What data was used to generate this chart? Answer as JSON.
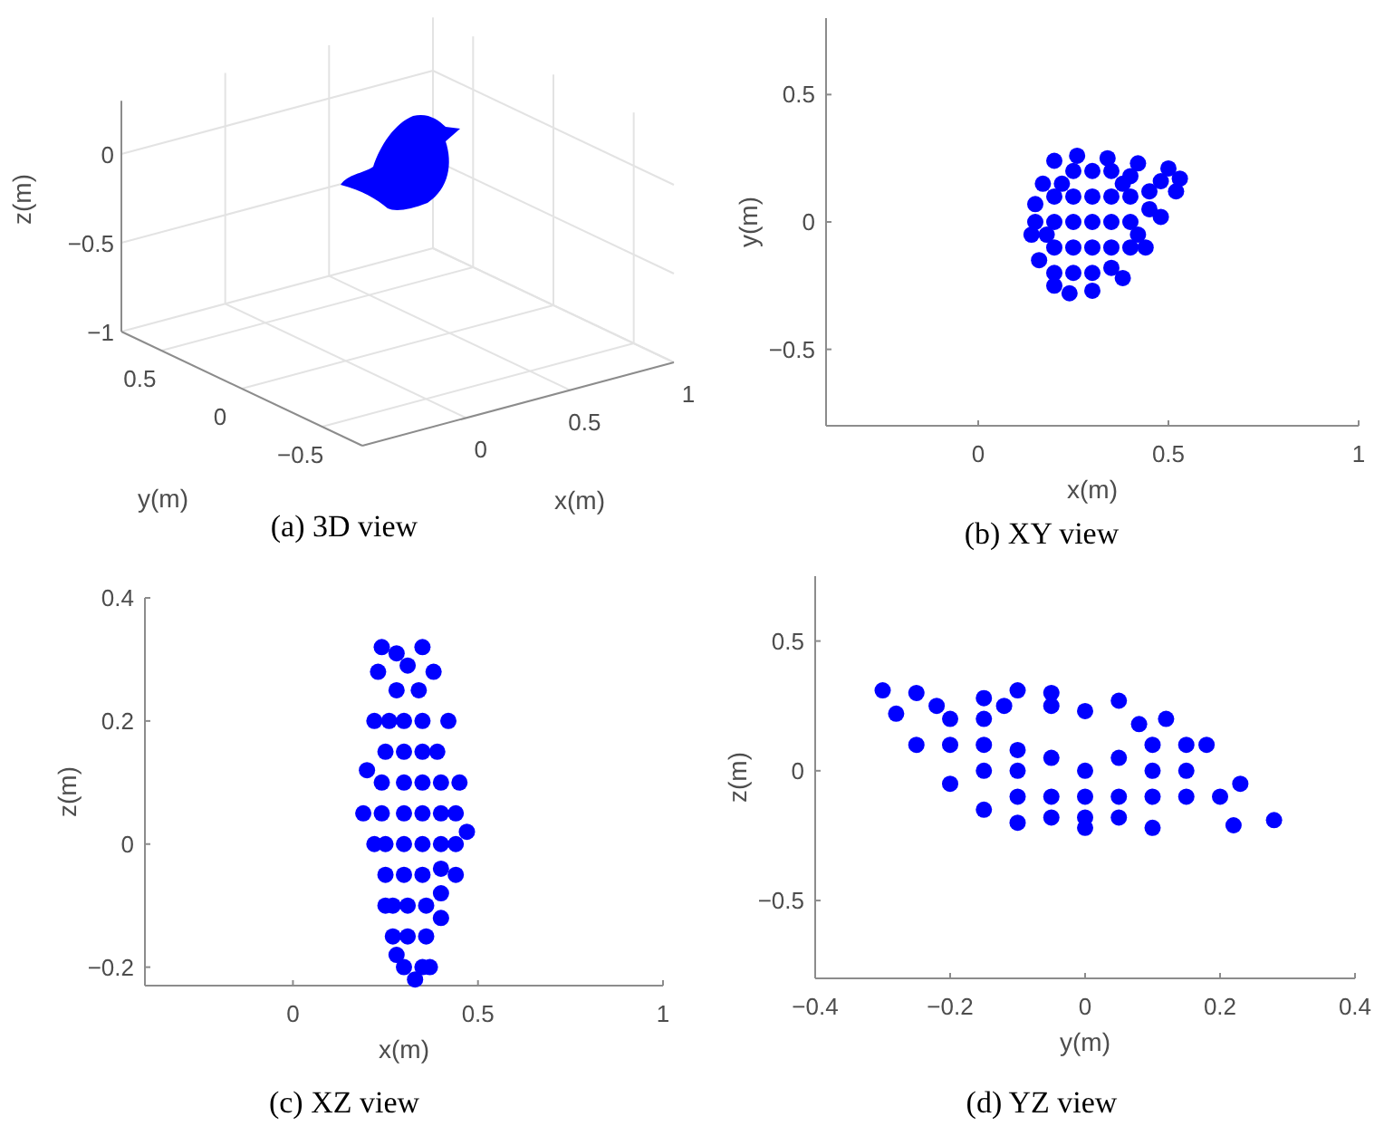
{
  "chart_data": [
    {
      "type": "other",
      "title": "(a) 3D view",
      "xlabel": "x(m)",
      "ylabel": "y(m)",
      "y2label": "z(m)",
      "annotations": [
        "0",
        "0.5",
        "1",
        "−0.5",
        "0",
        "0.5",
        "−1",
        "−0.5",
        "0"
      ]
    },
    {
      "type": "scatter",
      "title": "(b) XY view",
      "xlabel": "x(m)",
      "ylabel": "y(m)",
      "xlim": [
        -0.4,
        1
      ],
      "xticks": [
        0,
        0.5,
        1
      ],
      "ylim": [
        -0.8,
        0.8
      ],
      "yticks": [
        -0.5,
        0,
        0.5
      ],
      "marker": "circle",
      "series": [
        {
          "color": "#0000ff",
          "x": [
            0.15,
            0.14,
            0.16,
            0.2,
            0.24,
            0.3,
            0.38,
            0.44,
            0.48,
            0.52,
            0.53,
            0.5,
            0.42,
            0.34,
            0.26,
            0.2,
            0.17,
            0.15,
            0.2,
            0.25,
            0.3,
            0.35,
            0.2,
            0.25,
            0.3,
            0.35,
            0.4,
            0.2,
            0.25,
            0.3,
            0.35,
            0.4,
            0.45,
            0.2,
            0.25,
            0.3,
            0.35,
            0.4,
            0.45,
            0.25,
            0.3,
            0.35,
            0.4,
            0.48,
            0.18,
            0.42,
            0.22,
            0.38
          ],
          "values": [
            0,
            -0.05,
            -0.15,
            -0.25,
            -0.28,
            -0.27,
            -0.22,
            -0.1,
            0.02,
            0.12,
            0.17,
            0.21,
            0.23,
            0.25,
            0.26,
            0.24,
            0.15,
            0.07,
            -0.2,
            -0.2,
            -0.2,
            -0.18,
            -0.1,
            -0.1,
            -0.1,
            -0.1,
            -0.1,
            0,
            0,
            0,
            0,
            0,
            0.05,
            0.1,
            0.1,
            0.1,
            0.1,
            0.1,
            0.12,
            0.2,
            0.2,
            0.2,
            0.18,
            0.16,
            -0.05,
            -0.05,
            0.15,
            0.15
          ]
        }
      ]
    },
    {
      "type": "scatter",
      "title": "(c) XZ view",
      "xlabel": "x(m)",
      "ylabel": "z(m)",
      "xlim": [
        -0.4,
        1
      ],
      "xticks": [
        0,
        0.5,
        1
      ],
      "ylim": [
        -0.23,
        0.4
      ],
      "yticks": [
        -0.2,
        0,
        0.2,
        0.4
      ],
      "marker": "circle",
      "series": [
        {
          "color": "#0000ff",
          "x": [
            0.33,
            0.28,
            0.25,
            0.22,
            0.19,
            0.2,
            0.22,
            0.23,
            0.24,
            0.28,
            0.31,
            0.35,
            0.38,
            0.42,
            0.45,
            0.47,
            0.44,
            0.4,
            0.37,
            0.3,
            0.35,
            0.27,
            0.31,
            0.36,
            0.27,
            0.31,
            0.36,
            0.4,
            0.25,
            0.3,
            0.35,
            0.4,
            0.25,
            0.3,
            0.35,
            0.4,
            0.44,
            0.24,
            0.3,
            0.35,
            0.4,
            0.44,
            0.24,
            0.3,
            0.35,
            0.4,
            0.25,
            0.3,
            0.35,
            0.39,
            0.26,
            0.3,
            0.35,
            0.28,
            0.34
          ],
          "values": [
            -0.22,
            -0.18,
            -0.1,
            0,
            0.05,
            0.12,
            0.2,
            0.28,
            0.32,
            0.31,
            0.29,
            0.32,
            0.28,
            0.2,
            0.1,
            0.02,
            -0.05,
            -0.12,
            -0.2,
            -0.2,
            -0.2,
            -0.15,
            -0.15,
            -0.15,
            -0.1,
            -0.1,
            -0.1,
            -0.08,
            -0.05,
            -0.05,
            -0.05,
            -0.04,
            0,
            0,
            0,
            0,
            0,
            0.05,
            0.05,
            0.05,
            0.05,
            0.05,
            0.1,
            0.1,
            0.1,
            0.1,
            0.15,
            0.15,
            0.15,
            0.15,
            0.2,
            0.2,
            0.2,
            0.25,
            0.25
          ]
        }
      ]
    },
    {
      "type": "scatter",
      "title": "(d) YZ view",
      "xlabel": "y(m)",
      "ylabel": "z(m)",
      "xlim": [
        -0.4,
        0.4
      ],
      "xticks": [
        -0.4,
        -0.2,
        0,
        0.2,
        0.4
      ],
      "ylim": [
        -0.8,
        0.75
      ],
      "yticks": [
        -0.5,
        0,
        0.5
      ],
      "marker": "circle",
      "series": [
        {
          "color": "#0000ff",
          "x": [
            -0.3,
            -0.25,
            -0.15,
            -0.1,
            -0.05,
            0.05,
            0.12,
            0.18,
            0.23,
            0.28,
            0.22,
            0.1,
            0,
            -0.1,
            -0.15,
            -0.2,
            -0.25,
            -0.28,
            -0.2,
            -0.15,
            -0.15,
            -0.15,
            -0.1,
            -0.1,
            -0.05,
            -0.05,
            0,
            0,
            0,
            0.05,
            0.05,
            0.1,
            0.1,
            0.1,
            0.15,
            0.15,
            0.2,
            -0.05,
            0,
            0.08,
            -0.12,
            -0.2,
            0.05,
            -0.05,
            0.15,
            -0.1,
            -0.22
          ],
          "values": [
            0.31,
            0.3,
            0.28,
            0.31,
            0.3,
            0.27,
            0.2,
            0.1,
            -0.05,
            -0.19,
            -0.21,
            -0.22,
            -0.22,
            -0.2,
            -0.15,
            -0.05,
            0.1,
            0.22,
            0.2,
            0.2,
            0.1,
            0,
            0,
            -0.1,
            0.05,
            -0.1,
            0,
            -0.1,
            -0.18,
            0.05,
            -0.1,
            0,
            -0.1,
            0.1,
            0,
            -0.1,
            -0.1,
            0.25,
            0.23,
            0.18,
            0.25,
            0.1,
            -0.18,
            -0.18,
            0.1,
            0.08,
            0.25
          ]
        }
      ]
    }
  ]
}
